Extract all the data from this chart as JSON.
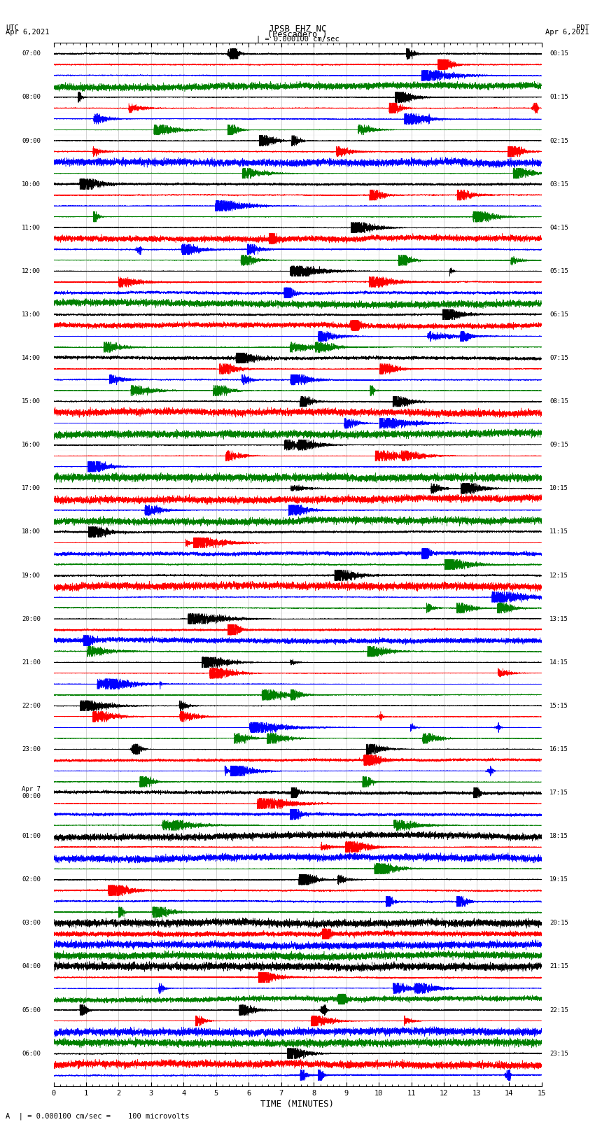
{
  "title_line1": "JPSB EHZ NC",
  "title_line2": "(Pescadero )",
  "scale_label": "| = 0.000100 cm/sec",
  "left_date_label": "UTC\nApr 6,2021",
  "right_date_label": "PDT\nApr 6,2021",
  "bottom_label": "A  | = 0.000100 cm/sec =    100 microvolts",
  "xlabel": "TIME (MINUTES)",
  "colors": [
    "black",
    "red",
    "blue",
    "green"
  ],
  "left_times": [
    "07:00",
    "",
    "",
    "",
    "08:00",
    "",
    "",
    "",
    "09:00",
    "",
    "",
    "",
    "10:00",
    "",
    "",
    "",
    "11:00",
    "",
    "",
    "",
    "12:00",
    "",
    "",
    "",
    "13:00",
    "",
    "",
    "",
    "14:00",
    "",
    "",
    "",
    "15:00",
    "",
    "",
    "",
    "16:00",
    "",
    "",
    "",
    "17:00",
    "",
    "",
    "",
    "18:00",
    "",
    "",
    "",
    "19:00",
    "",
    "",
    "",
    "20:00",
    "",
    "",
    "",
    "21:00",
    "",
    "",
    "",
    "22:00",
    "",
    "",
    "",
    "23:00",
    "",
    "",
    "",
    "Apr 7\n00:00",
    "",
    "",
    "",
    "01:00",
    "",
    "",
    "",
    "02:00",
    "",
    "",
    "",
    "03:00",
    "",
    "",
    "",
    "04:00",
    "",
    "",
    "",
    "05:00",
    "",
    "",
    "",
    "06:00",
    "",
    ""
  ],
  "right_times": [
    "00:15",
    "",
    "",
    "",
    "01:15",
    "",
    "",
    "",
    "02:15",
    "",
    "",
    "",
    "03:15",
    "",
    "",
    "",
    "04:15",
    "",
    "",
    "",
    "05:15",
    "",
    "",
    "",
    "06:15",
    "",
    "",
    "",
    "07:15",
    "",
    "",
    "",
    "08:15",
    "",
    "",
    "",
    "09:15",
    "",
    "",
    "",
    "10:15",
    "",
    "",
    "",
    "11:15",
    "",
    "",
    "",
    "12:15",
    "",
    "",
    "",
    "13:15",
    "",
    "",
    "",
    "14:15",
    "",
    "",
    "",
    "15:15",
    "",
    "",
    "",
    "16:15",
    "",
    "",
    "",
    "17:15",
    "",
    "",
    "",
    "18:15",
    "",
    "",
    "",
    "19:15",
    "",
    "",
    "",
    "20:15",
    "",
    "",
    "",
    "21:15",
    "",
    "",
    "",
    "22:15",
    "",
    "",
    "",
    "23:15",
    "",
    ""
  ],
  "bg_color": "white",
  "minutes": 15,
  "n_samples": 9000,
  "fig_width": 8.5,
  "fig_height": 16.13
}
